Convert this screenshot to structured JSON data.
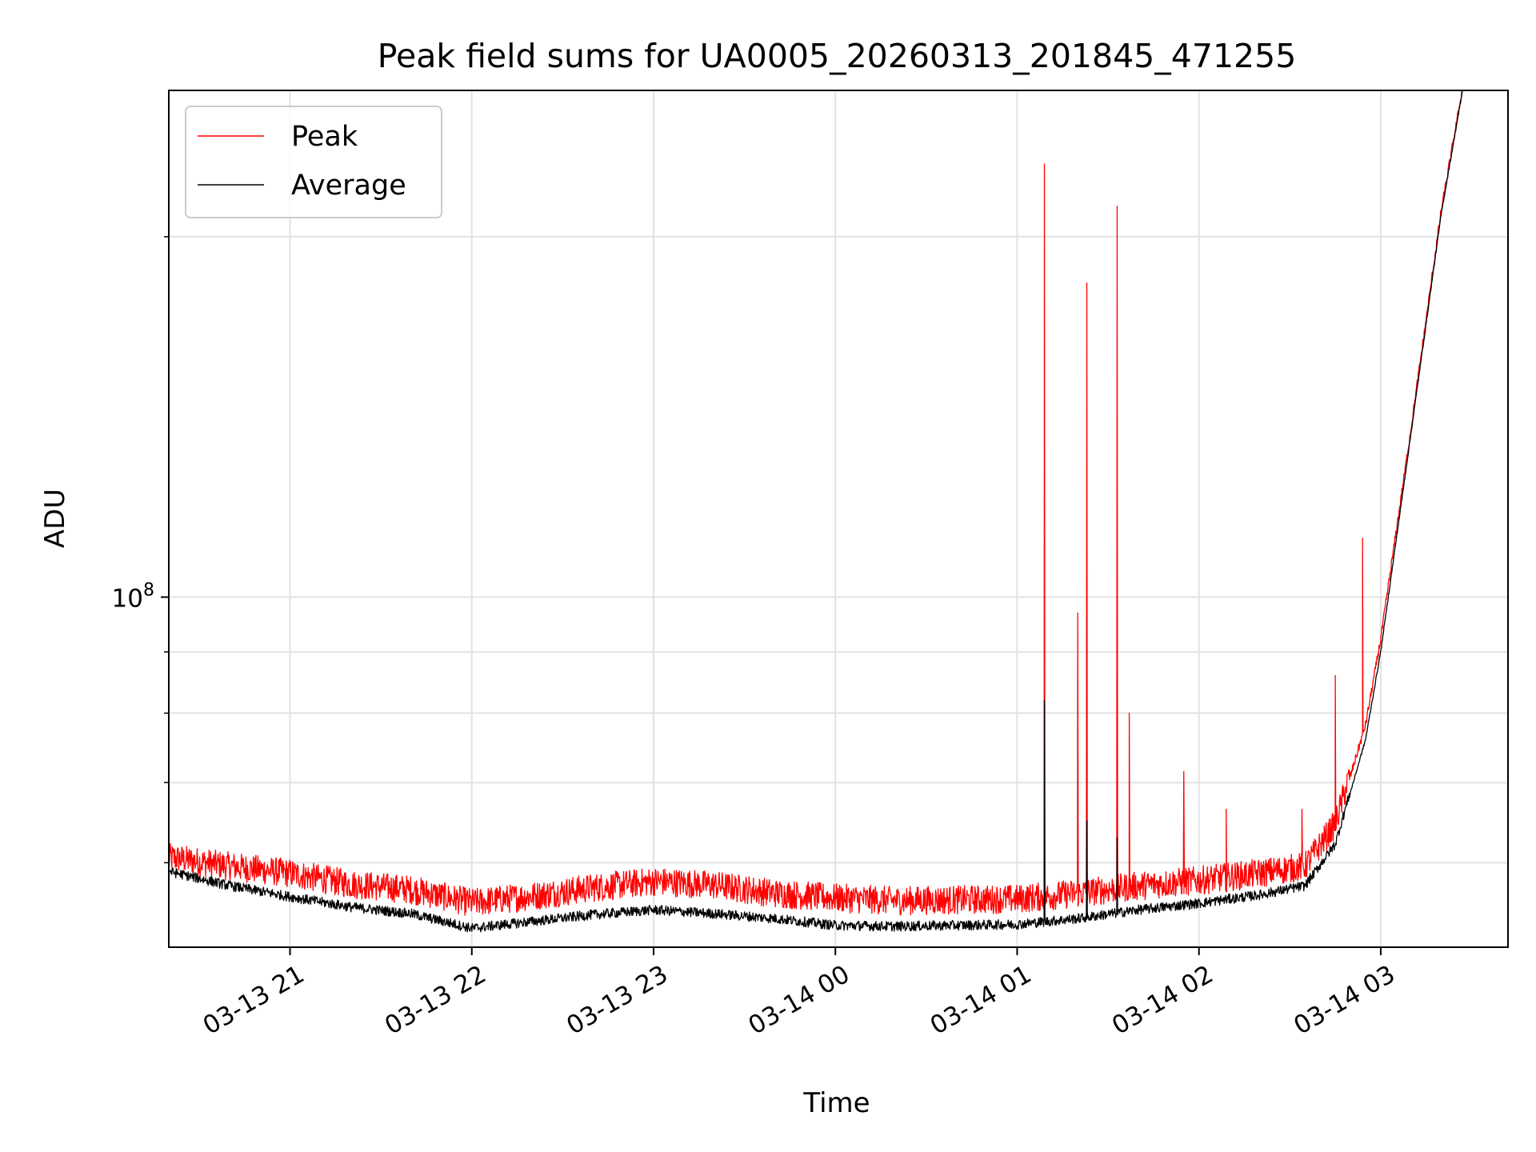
{
  "chart_data": {
    "type": "line",
    "title": "Peak field sums for UA0005_20260313_201845_471255",
    "xlabel": "Time",
    "ylabel": "ADU",
    "x_scale": "time",
    "y_scale": "log",
    "x_range": [
      "2026-03-13 20:20",
      "2026-03-14 03:42"
    ],
    "ylim": [
      51000000,
      265000000
    ],
    "x_ticks": [
      {
        "value": "2026-03-13 21:00",
        "label": "03-13 21"
      },
      {
        "value": "2026-03-13 22:00",
        "label": "03-13 22"
      },
      {
        "value": "2026-03-13 23:00",
        "label": "03-13 23"
      },
      {
        "value": "2026-03-14 00:00",
        "label": "03-14 00"
      },
      {
        "value": "2026-03-14 01:00",
        "label": "03-14 01"
      },
      {
        "value": "2026-03-14 02:00",
        "label": "03-14 02"
      },
      {
        "value": "2026-03-14 03:00",
        "label": "03-14 03"
      }
    ],
    "y_ticks": [
      {
        "value": 100000000,
        "base": "10",
        "exp": "8"
      }
    ],
    "grid": true,
    "legend": "upper-left",
    "series": [
      {
        "name": "Peak",
        "color": "#ff0000",
        "x": [
          "2026-03-13 20:20",
          "2026-03-13 20:40",
          "2026-03-13 21:00",
          "2026-03-13 21:20",
          "2026-03-13 21:40",
          "2026-03-13 22:00",
          "2026-03-13 22:20",
          "2026-03-13 22:40",
          "2026-03-13 23:00",
          "2026-03-13 23:20",
          "2026-03-13 23:40",
          "2026-03-14 00:00",
          "2026-03-14 00:20",
          "2026-03-14 00:40",
          "2026-03-14 01:00",
          "2026-03-14 01:20",
          "2026-03-14 01:40",
          "2026-03-14 02:00",
          "2026-03-14 02:20",
          "2026-03-14 02:35",
          "2026-03-14 02:45",
          "2026-03-14 02:55",
          "2026-03-14 03:00",
          "2026-03-14 03:10",
          "2026-03-14 03:20",
          "2026-03-14 03:27"
        ],
        "y": [
          60000000,
          59000000,
          58200000,
          57000000,
          56400000,
          55000000,
          55700000,
          56600000,
          57300000,
          56900000,
          56000000,
          55500000,
          55200000,
          55300000,
          55400000,
          56000000,
          56800000,
          57400000,
          58200000,
          59000000,
          64000000,
          78000000,
          92000000,
          138000000,
          210000000,
          265000000
        ],
        "spikes": [
          {
            "x": "2026-03-14 01:09",
            "y": 230000000
          },
          {
            "x": "2026-03-14 01:20",
            "y": 97000000
          },
          {
            "x": "2026-03-14 01:23",
            "y": 183000000
          },
          {
            "x": "2026-03-14 01:33",
            "y": 212000000
          },
          {
            "x": "2026-03-14 01:37",
            "y": 80000000
          },
          {
            "x": "2026-03-14 01:55",
            "y": 71500000
          },
          {
            "x": "2026-03-14 02:09",
            "y": 66500000
          },
          {
            "x": "2026-03-14 02:34",
            "y": 66500000
          },
          {
            "x": "2026-03-14 02:45",
            "y": 86000000
          },
          {
            "x": "2026-03-14 02:54",
            "y": 112000000
          }
        ]
      },
      {
        "name": "Average",
        "color": "#000000",
        "x": [
          "2026-03-13 20:20",
          "2026-03-13 20:40",
          "2026-03-13 21:00",
          "2026-03-13 21:20",
          "2026-03-13 21:40",
          "2026-03-13 22:00",
          "2026-03-13 22:20",
          "2026-03-13 22:40",
          "2026-03-13 23:00",
          "2026-03-13 23:20",
          "2026-03-13 23:40",
          "2026-03-14 00:00",
          "2026-03-14 00:20",
          "2026-03-14 00:40",
          "2026-03-14 01:00",
          "2026-03-14 01:20",
          "2026-03-14 01:40",
          "2026-03-14 02:00",
          "2026-03-14 02:20",
          "2026-03-14 02:35",
          "2026-03-14 02:45",
          "2026-03-14 02:55",
          "2026-03-14 03:00",
          "2026-03-14 03:10",
          "2026-03-14 03:20",
          "2026-03-14 03:27"
        ],
        "y": [
          58800000,
          57200000,
          56000000,
          54900000,
          54200000,
          52700000,
          53400000,
          54100000,
          54600000,
          54200000,
          53700000,
          53000000,
          52900000,
          53000000,
          53100000,
          53700000,
          54600000,
          55300000,
          56200000,
          57200000,
          62000000,
          76000000,
          90000000,
          137000000,
          209000000,
          265000000
        ],
        "spikes": [
          {
            "x": "2026-03-14 01:09",
            "y": 82000000
          },
          {
            "x": "2026-03-14 01:23",
            "y": 65000000
          },
          {
            "x": "2026-03-14 01:33",
            "y": 63000000
          }
        ]
      }
    ]
  }
}
